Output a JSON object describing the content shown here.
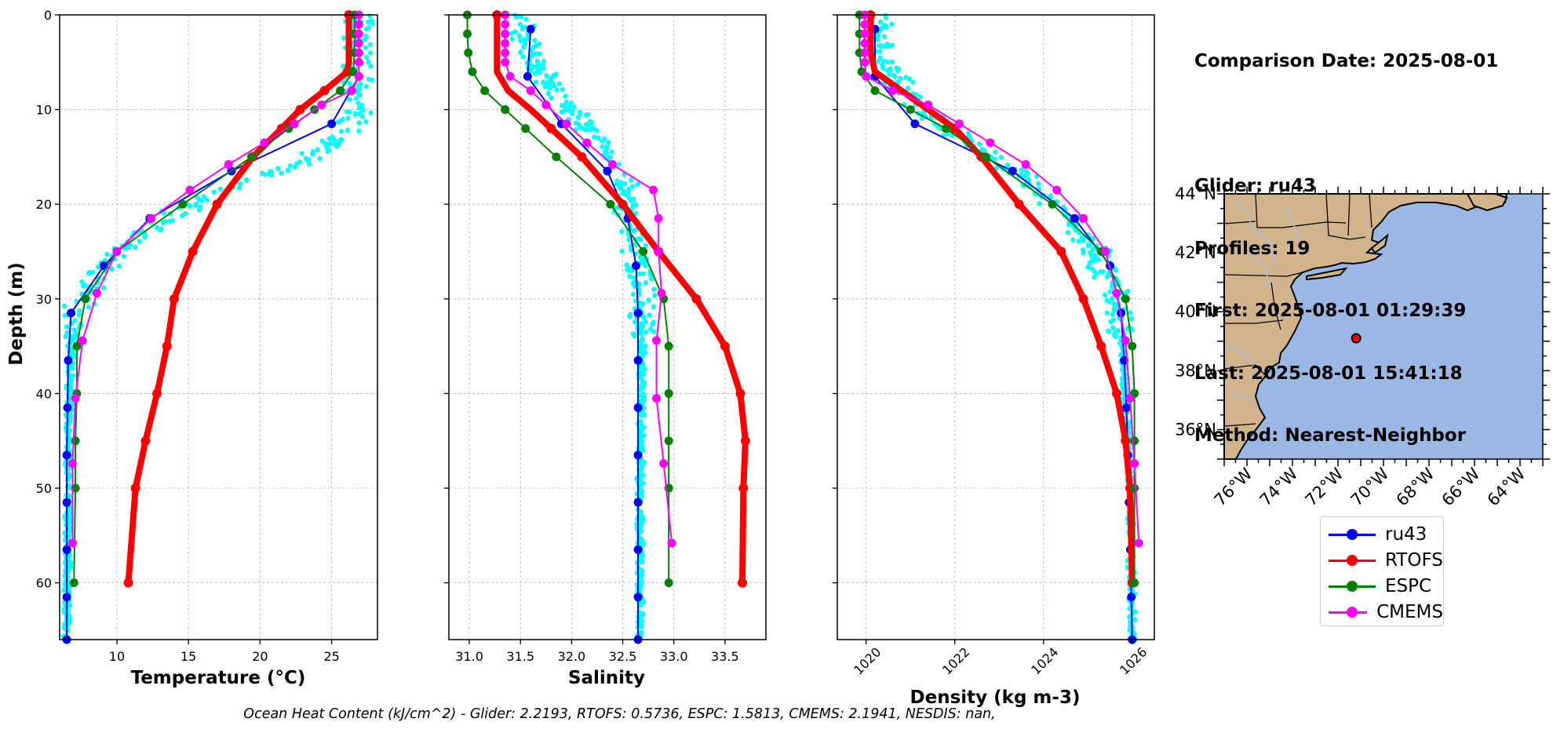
{
  "info": {
    "comparison_date": "Comparison Date: 2025-08-01",
    "glider": "Glider: ru43",
    "profiles": "Profiles: 19",
    "first": "First: 2025-08-01 01:29:39",
    "last": "Last: 2025-08-01 15:41:18",
    "method": "Method: Nearest-Neighbor"
  },
  "footnote": "Ocean Heat Content (kJ/cm^2) - Glider: 2.2193,  RTOFS: 0.5736,  ESPC: 1.5813,  CMEMS: 2.1941,  NESDIS: nan,",
  "colors": {
    "ru43": "#0000ff",
    "RTOFS": "#ff0000",
    "ESPC": "#008000",
    "CMEMS": "#ff00ff",
    "raw": "#00ffff",
    "land": "#d2b48c",
    "ocean": "#9ab8e3",
    "rivers": "#a7bfe0"
  },
  "legend": [
    {
      "name": "ru43",
      "color": "#0000ff"
    },
    {
      "name": "RTOFS",
      "color": "#ff0000"
    },
    {
      "name": "ESPC",
      "color": "#008000"
    },
    {
      "name": "CMEMS",
      "color": "#ff00ff"
    }
  ],
  "chart_data": [
    {
      "type": "line",
      "xlabel": "Temperature (°C)",
      "ylabel": "Depth (m)",
      "xlim": [
        6,
        28.2
      ],
      "ylim": [
        66,
        0
      ],
      "xticks": [
        10,
        15,
        20,
        25
      ],
      "yticks": [
        0,
        10,
        20,
        30,
        40,
        50,
        60
      ],
      "grid": true,
      "raw_profile_band": [
        [
          26.8,
          4
        ],
        [
          27,
          8
        ],
        [
          26.5,
          11
        ],
        [
          25,
          14
        ],
        [
          22,
          16
        ],
        [
          18,
          18
        ],
        [
          14,
          21
        ],
        [
          11,
          24
        ],
        [
          9,
          27
        ],
        [
          7.5,
          30
        ],
        [
          6.8,
          35
        ],
        [
          6.6,
          45
        ],
        [
          6.5,
          66
        ]
      ],
      "series": [
        {
          "name": "ru43",
          "depth": [
            6.5,
            11.5,
            16.5,
            21.5,
            26.5,
            31.5,
            36.5,
            41.5,
            46.5,
            51.5,
            56.5,
            61.5,
            66
          ],
          "values": [
            26.9,
            25,
            18,
            12.3,
            9.1,
            6.8,
            6.6,
            6.55,
            6.5,
            6.5,
            6.5,
            6.5,
            6.5
          ]
        },
        {
          "name": "RTOFS",
          "depth": [
            0,
            1,
            2,
            3,
            4,
            5,
            6,
            8,
            10,
            12,
            15,
            20,
            25,
            30,
            35,
            40,
            45,
            50,
            60
          ],
          "values": [
            26.2,
            26.2,
            26.2,
            26.2,
            26.2,
            26.2,
            26.1,
            24.5,
            22.8,
            21.5,
            19.5,
            17,
            15.3,
            14,
            13.5,
            12.8,
            12,
            11.3,
            10.8
          ]
        },
        {
          "name": "ESPC",
          "depth": [
            0,
            2,
            4,
            6,
            8,
            10,
            12,
            15,
            20,
            25,
            30,
            35,
            40,
            45,
            50,
            60
          ],
          "values": [
            26.6,
            26.6,
            26.6,
            26.5,
            25.6,
            23.8,
            22,
            19.4,
            14.6,
            10,
            7.8,
            7.2,
            7.2,
            7.1,
            7.1,
            7
          ]
        },
        {
          "name": "CMEMS",
          "depth": [
            0,
            1,
            2,
            3,
            4,
            5,
            6.5,
            8,
            9.5,
            11.5,
            13.5,
            15.8,
            18.5,
            21.5,
            25,
            29.4,
            34.4,
            40.5,
            47.4,
            55.8
          ],
          "values": [
            26.9,
            26.9,
            26.9,
            26.9,
            26.9,
            26.9,
            26.9,
            26.4,
            24.3,
            22.4,
            20.3,
            17.8,
            15.1,
            12.4,
            10,
            8.6,
            7.6,
            7.1,
            6.9,
            6.9
          ]
        }
      ]
    },
    {
      "type": "line",
      "xlabel": "Salinity",
      "ylabel": "",
      "xlim": [
        30.8,
        33.9
      ],
      "ylim": [
        66,
        0
      ],
      "xticks": [
        31.0,
        31.5,
        32.0,
        32.5,
        33.0,
        33.5
      ],
      "yticks": [
        0,
        10,
        20,
        30,
        40,
        50,
        60
      ],
      "grid": true,
      "raw_profile_band": [
        [
          31.5,
          2
        ],
        [
          31.7,
          6
        ],
        [
          32,
          10
        ],
        [
          32.3,
          14
        ],
        [
          32.5,
          18
        ],
        [
          32.6,
          22
        ],
        [
          32.65,
          26
        ],
        [
          32.7,
          30
        ],
        [
          32.68,
          40
        ],
        [
          32.67,
          50
        ],
        [
          32.67,
          66
        ]
      ],
      "series": [
        {
          "name": "ru43",
          "depth": [
            1.5,
            6.5,
            11.5,
            16.5,
            21.5,
            26.5,
            31.5,
            36.5,
            41.5,
            46.5,
            51.5,
            56.5,
            61.5,
            66
          ],
          "values": [
            31.6,
            31.57,
            31.9,
            32.35,
            32.55,
            32.63,
            32.65,
            32.65,
            32.65,
            32.65,
            32.65,
            32.65,
            32.65,
            32.65
          ]
        },
        {
          "name": "RTOFS",
          "depth": [
            0,
            2,
            4,
            6,
            8,
            10,
            12,
            15,
            20,
            25,
            30,
            35,
            40,
            45,
            50,
            60
          ],
          "values": [
            31.27,
            31.27,
            31.27,
            31.27,
            31.38,
            31.6,
            31.8,
            32.1,
            32.5,
            32.85,
            33.22,
            33.5,
            33.65,
            33.7,
            33.68,
            33.67
          ]
        },
        {
          "name": "ESPC",
          "depth": [
            0,
            2,
            4,
            6,
            8,
            10,
            12,
            15,
            20,
            25,
            30,
            35,
            40,
            45,
            50,
            60
          ],
          "values": [
            30.98,
            30.98,
            30.99,
            31.03,
            31.15,
            31.35,
            31.55,
            31.85,
            32.38,
            32.7,
            32.9,
            32.95,
            32.95,
            32.95,
            32.95,
            32.95
          ]
        },
        {
          "name": "CMEMS",
          "depth": [
            0,
            1,
            2,
            3,
            4,
            5,
            6.5,
            8,
            9.5,
            11.5,
            13.5,
            15.8,
            18.5,
            21.5,
            25,
            29.4,
            34.4,
            40.5,
            47.4,
            55.8
          ],
          "values": [
            31.35,
            31.35,
            31.35,
            31.35,
            31.35,
            31.35,
            31.4,
            31.6,
            31.75,
            31.95,
            32.15,
            32.4,
            32.8,
            32.85,
            32.85,
            32.88,
            32.83,
            32.83,
            32.9,
            32.98
          ]
        }
      ]
    },
    {
      "type": "line",
      "xlabel": "Density (kg m-3)",
      "ylabel": "",
      "xlim": [
        1019.35,
        1026.5
      ],
      "ylim": [
        66,
        0
      ],
      "xticks": [
        1020,
        1022,
        1024,
        1026
      ],
      "yticks": [
        0,
        10,
        20,
        30,
        40,
        50,
        60
      ],
      "grid": true,
      "raw_profile_band": [
        [
          1020.3,
          4
        ],
        [
          1020.8,
          8
        ],
        [
          1021.5,
          11
        ],
        [
          1022.5,
          14
        ],
        [
          1023.5,
          17
        ],
        [
          1024.5,
          21
        ],
        [
          1025.2,
          25
        ],
        [
          1025.7,
          30
        ],
        [
          1025.85,
          40
        ],
        [
          1025.95,
          50
        ],
        [
          1026,
          66
        ]
      ],
      "series": [
        {
          "name": "ru43",
          "depth": [
            1.5,
            6.5,
            11.5,
            16.5,
            21.5,
            26.5,
            31.5,
            36.5,
            41.5,
            46.5,
            51.5,
            56.5,
            61.5,
            66
          ],
          "values": [
            1020.2,
            1020.2,
            1021.1,
            1023.3,
            1024.7,
            1025.5,
            1025.75,
            1025.82,
            1025.87,
            1025.9,
            1025.93,
            1025.96,
            1025.98,
            1026
          ]
        },
        {
          "name": "RTOFS",
          "depth": [
            0,
            2,
            4,
            6,
            8,
            10,
            12,
            15,
            20,
            25,
            30,
            35,
            40,
            45,
            50,
            60
          ],
          "values": [
            1020.1,
            1020.1,
            1020.1,
            1020.2,
            1020.8,
            1021.4,
            1022,
            1022.6,
            1023.45,
            1024.4,
            1024.9,
            1025.3,
            1025.65,
            1025.85,
            1025.95,
            1026
          ]
        },
        {
          "name": "ESPC",
          "depth": [
            0,
            2,
            4,
            6,
            8,
            10,
            12,
            15,
            20,
            25,
            30,
            35,
            40,
            45,
            50,
            60
          ],
          "values": [
            1019.85,
            1019.85,
            1019.85,
            1019.9,
            1020.2,
            1021,
            1021.8,
            1022.7,
            1024.2,
            1025.3,
            1025.85,
            1026,
            1026.05,
            1026.05,
            1026.05,
            1026.05
          ]
        },
        {
          "name": "CMEMS",
          "depth": [
            0,
            1,
            2,
            3,
            4,
            5,
            6.5,
            8,
            9.5,
            11.5,
            13.5,
            15.8,
            18.5,
            21.5,
            25,
            29.4,
            34.4,
            40.5,
            47.4,
            55.8
          ],
          "values": [
            1019.97,
            1019.97,
            1019.97,
            1019.97,
            1019.97,
            1019.97,
            1020,
            1020.6,
            1021.4,
            1022.1,
            1022.8,
            1023.6,
            1024.3,
            1024.9,
            1025.4,
            1025.65,
            1025.85,
            1025.95,
            1026.05,
            1026.15
          ]
        }
      ]
    }
  ],
  "map": {
    "lat_labels": [
      "44°N",
      "42°N",
      "40°N",
      "38°N",
      "36°N"
    ],
    "lon_labels": [
      "76°W",
      "74°W",
      "72°W",
      "70°W",
      "68°W",
      "66°W",
      "64°W"
    ],
    "glider_lat": 39.1,
    "glider_lon": -71.2,
    "lat_range": [
      35,
      44
    ],
    "lon_range": [
      -77,
      -63
    ]
  }
}
